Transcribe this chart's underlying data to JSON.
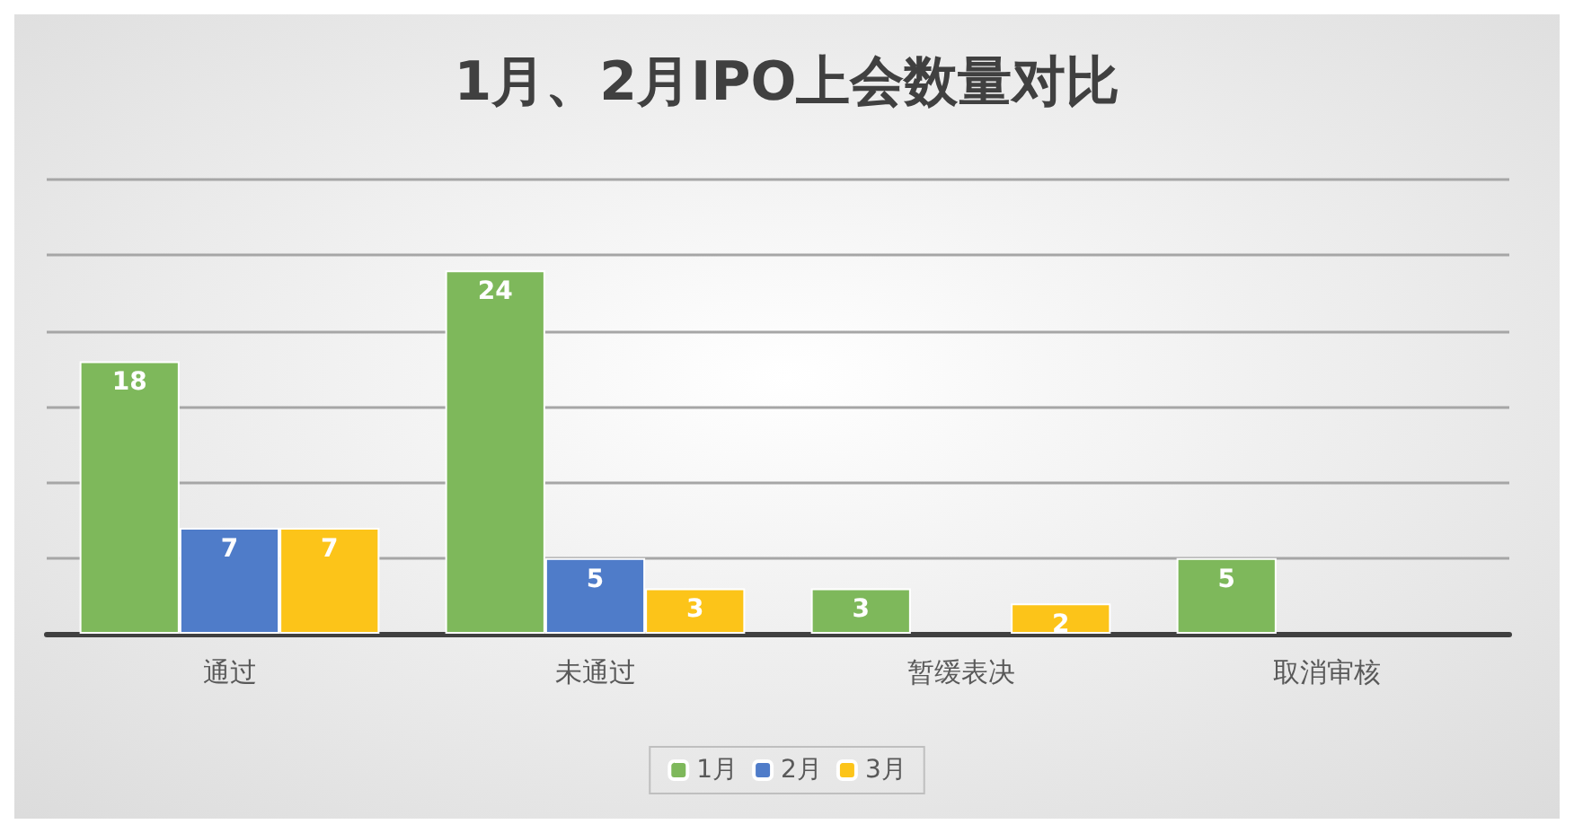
{
  "chart_data": {
    "type": "bar",
    "title": "1月、2月IPO上会数量对比",
    "categories": [
      "通过",
      "未通过",
      "暂缓表决",
      "取消审核"
    ],
    "series": [
      {
        "name": "1月",
        "color": "#7eb85b",
        "values": [
          18,
          24,
          3,
          5
        ]
      },
      {
        "name": "2月",
        "color": "#4f7cc9",
        "values": [
          7,
          5,
          null,
          null
        ]
      },
      {
        "name": "3月",
        "color": "#fcc419",
        "values": [
          7,
          3,
          2,
          null
        ]
      }
    ],
    "ylim": [
      0,
      30
    ],
    "yticks": [
      {
        "value": 0,
        "label": null
      },
      {
        "value": 5,
        "label": null
      },
      {
        "value": 10,
        "label": null
      },
      {
        "value": 15,
        "label": null
      },
      {
        "value": 20,
        "label": null
      },
      {
        "value": 25,
        "label": null
      },
      {
        "value": 30,
        "label": null
      }
    ],
    "tick_labels": "x",
    "grid": "y",
    "legend": "bottom",
    "data_labels": true
  }
}
